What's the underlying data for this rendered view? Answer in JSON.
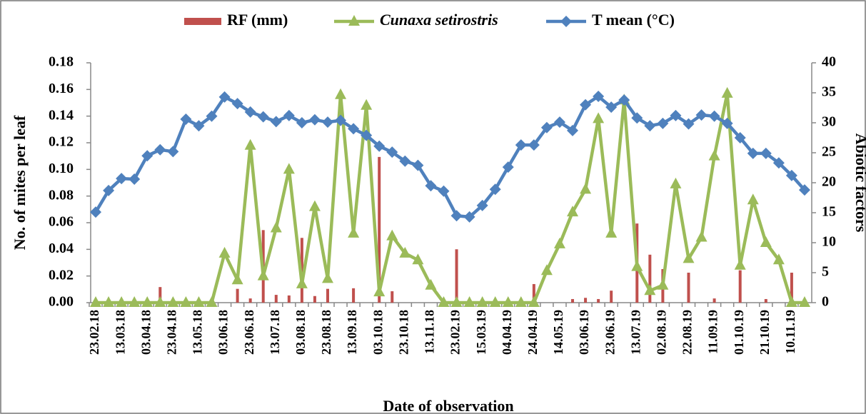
{
  "chart_data": {
    "type": "combo",
    "x_label": "Date of observation",
    "y_label": "No. of mites per leaf",
    "y2_label": "Abiotic factors",
    "categories": [
      "23.02.18",
      null,
      "13.03.18",
      null,
      "03.04.18",
      null,
      "23.04.18",
      null,
      "13.05.18",
      null,
      "03.06.18",
      null,
      "23.06.18",
      null,
      "13.07.18",
      null,
      "03.08.18",
      null,
      "23.08.18",
      null,
      "13.09.18",
      null,
      "03.10.18",
      null,
      "23.10.18",
      null,
      "13.11.18",
      null,
      "23.02.19",
      null,
      "15.03.19",
      null,
      "04.04.19",
      null,
      "24.04.19",
      null,
      "14.05.19",
      null,
      "03.06.19",
      null,
      "23.06.19",
      null,
      "13.07.19",
      null,
      "02.08.19",
      null,
      "22.08.19",
      null,
      "11.09.19",
      null,
      "01.10.19",
      null,
      "21.10.19",
      null,
      "10.11.19",
      null
    ],
    "ylim": [
      0,
      0.18
    ],
    "yticks": [
      {
        "value": 0,
        "label": "0.00"
      },
      0.02,
      0.04,
      0.06,
      0.08,
      {
        "value": 0.1,
        "label": "0.10"
      },
      0.12,
      0.14,
      0.16,
      0.18
    ],
    "y2lim": [
      0,
      40
    ],
    "y2ticks": [
      0,
      5,
      10,
      15,
      20,
      25,
      30,
      35,
      40
    ],
    "series": [
      {
        "name": "RF (mm)",
        "type": "bar",
        "axis": "y2",
        "color": "#c0504d",
        "values": [
          0,
          0,
          0,
          0,
          0,
          2.6,
          0,
          0,
          0,
          0,
          0,
          2.3,
          0.7,
          12.1,
          1.3,
          1.2,
          10.8,
          1.1,
          2.3,
          0,
          2.4,
          0,
          24.3,
          1.9,
          0,
          0,
          0,
          0,
          8.9,
          0,
          0,
          0,
          0,
          0,
          3.1,
          0,
          0,
          0.6,
          0.8,
          0.6,
          2.0,
          0,
          13.2,
          8.0,
          5.6,
          0,
          5.0,
          0,
          0.7,
          0,
          5.4,
          0,
          0.6,
          0,
          5.0,
          0
        ]
      },
      {
        "name": "Cunaxa setirostris",
        "type": "line",
        "marker": "triangle",
        "italic": true,
        "color": "#9bbb59",
        "values": [
          0,
          0,
          0,
          0,
          0,
          0,
          0,
          0,
          0,
          0,
          0.037,
          0.017,
          0.118,
          0.02,
          0.056,
          0.1,
          0.014,
          0.072,
          0.018,
          0.156,
          0.052,
          0.148,
          0.008,
          0.05,
          0.037,
          0.032,
          0.013,
          0,
          0,
          0,
          0,
          0,
          0,
          0,
          0,
          0.024,
          0.044,
          0.068,
          0.085,
          0.138,
          0.052,
          0.152,
          0.027,
          0.009,
          0.013,
          0.089,
          0.033,
          0.049,
          0.11,
          0.157,
          0.028,
          0.077,
          0.045,
          0.032,
          0,
          0
        ]
      },
      {
        "name": "T mean (°C)",
        "type": "line",
        "marker": "diamond",
        "axis": "y2",
        "color": "#4f81bd",
        "values": [
          15.1,
          18.7,
          20.7,
          20.6,
          24.5,
          25.5,
          25.2,
          30.6,
          29.5,
          31.1,
          34.3,
          33.2,
          31.8,
          31.0,
          30.2,
          31.2,
          30.0,
          30.5,
          30.1,
          30.4,
          29.0,
          27.9,
          26.1,
          25.1,
          23.6,
          22.9,
          19.5,
          18.6,
          14.5,
          14.3,
          16.2,
          18.9,
          22.6,
          26.3,
          26.3,
          29.2,
          30.1,
          28.7,
          33.0,
          34.4,
          32.6,
          33.8,
          30.8,
          29.5,
          29.9,
          31.2,
          29.8,
          31.3,
          31.1,
          29.9,
          27.5,
          24.9,
          24.9,
          23.3,
          21.2,
          18.8
        ]
      }
    ]
  }
}
